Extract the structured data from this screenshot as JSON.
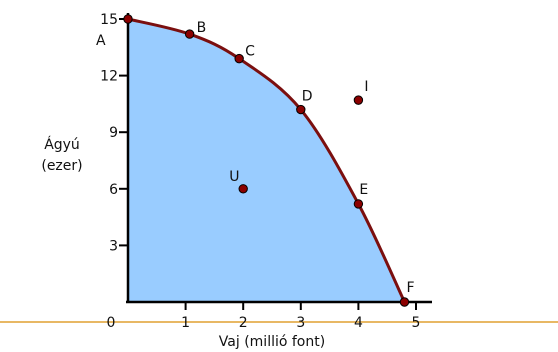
{
  "chart_data": {
    "type": "line",
    "title": "",
    "xlabel": "Vaj (millió font)",
    "ylabel_lines": [
      "Ágyú",
      "(ezer)"
    ],
    "xlim": [
      0,
      5
    ],
    "ylim": [
      0,
      15
    ],
    "x_ticks": [
      {
        "value": 0,
        "label": "0"
      },
      {
        "value": 1,
        "label": "1"
      },
      {
        "value": 2,
        "label": "2"
      },
      {
        "value": 3,
        "label": "3"
      },
      {
        "value": 4,
        "label": "4"
      },
      {
        "value": 5,
        "label": "5"
      }
    ],
    "y_ticks": [
      {
        "value": 3,
        "label": "3"
      },
      {
        "value": 6,
        "label": "6"
      },
      {
        "value": 9,
        "label": "9"
      },
      {
        "value": 12,
        "label": "12"
      },
      {
        "value": 15,
        "label": "15"
      }
    ],
    "frontier": [
      {
        "label": "A",
        "x": 0,
        "y": 15
      },
      {
        "label": "B",
        "x": 1.07,
        "y": 14.2
      },
      {
        "label": "C",
        "x": 1.93,
        "y": 12.9
      },
      {
        "label": "D",
        "x": 3.0,
        "y": 10.2
      },
      {
        "label": "E",
        "x": 4.0,
        "y": 5.2
      },
      {
        "label": "F",
        "x": 4.8,
        "y": 0
      }
    ],
    "off_points": [
      {
        "label": "I",
        "x": 4.0,
        "y": 10.7
      },
      {
        "label": "U",
        "x": 2.0,
        "y": 6.0
      }
    ],
    "grid": false,
    "colors": {
      "frontier_line": "#7b0f0f",
      "area_fill": "#99ccff",
      "point_fill": "#8b0000",
      "axis": "#000000",
      "baseline": "#e0a030",
      "label_u": "#5a5a6a"
    }
  }
}
